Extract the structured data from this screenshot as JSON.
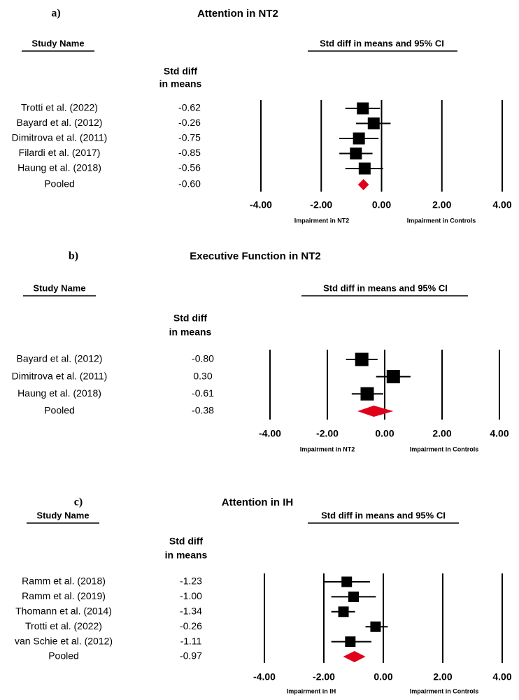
{
  "chart_data": [
    {
      "type": "forest",
      "panel_label": "a)",
      "title": "Attention in NT2",
      "study_header": "Study Name",
      "ci_header": "Std diff in means and 95% CI",
      "effect_header": [
        "Std diff",
        "in means"
      ],
      "studies": [
        {
          "name": "Trotti et al. (2022)",
          "value_text": "-0.62",
          "estimate": -0.62,
          "lower": -1.2,
          "upper": -0.05
        },
        {
          "name": "Bayard et al. (2012)",
          "value_text": "-0.26",
          "estimate": -0.26,
          "lower": -0.85,
          "upper": 0.3
        },
        {
          "name": "Dimitrova et al. (2011)",
          "value_text": "-0.75",
          "estimate": -0.75,
          "lower": -1.4,
          "upper": -0.1
        },
        {
          "name": "Filardi et al. (2017)",
          "value_text": "-0.85",
          "estimate": -0.85,
          "lower": -1.4,
          "upper": -0.3
        },
        {
          "name": "Haung et al. (2018)",
          "value_text": "-0.56",
          "estimate": -0.56,
          "lower": -1.2,
          "upper": 0.05
        }
      ],
      "pooled": {
        "name": "Pooled",
        "value_text": "-0.60",
        "estimate": -0.6,
        "lower": -0.78,
        "upper": -0.42
      },
      "x_ticks": [
        "-4.00",
        "-2.00",
        "0.00",
        "2.00",
        "4.00"
      ],
      "xlim": [
        -4,
        4
      ],
      "left_note": "Impairment in NT2",
      "right_note": "Impairment in Controls"
    },
    {
      "type": "forest",
      "panel_label": "b)",
      "title": "Executive Function in NT2",
      "study_header": "Study Name",
      "ci_header": "Std diff in means and 95% CI",
      "effect_header": [
        "Std diff",
        "in means"
      ],
      "studies": [
        {
          "name": "Bayard et al. (2012)",
          "value_text": "-0.80",
          "estimate": -0.8,
          "lower": -1.35,
          "upper": -0.25
        },
        {
          "name": "Dimitrova et al. (2011)",
          "value_text": "0.30",
          "estimate": 0.3,
          "lower": -0.3,
          "upper": 0.9
        },
        {
          "name": "Haung et al. (2018)",
          "value_text": "-0.61",
          "estimate": -0.61,
          "lower": -1.15,
          "upper": -0.05
        }
      ],
      "pooled": {
        "name": "Pooled",
        "value_text": "-0.38",
        "estimate": -0.38,
        "lower": -0.95,
        "upper": 0.3
      },
      "x_ticks": [
        "-4.00",
        "-2.00",
        "0.00",
        "2.00",
        "4.00"
      ],
      "xlim": [
        -4,
        4
      ],
      "left_note": "Impairment in NT2",
      "right_note": "Impairment in Controls"
    },
    {
      "type": "forest",
      "panel_label": "c)",
      "title": "Attention in IH",
      "study_header": "Study Name",
      "ci_header": "Std diff in means and 95% CI",
      "effect_header": [
        "Std diff",
        "in means"
      ],
      "studies": [
        {
          "name": "Ramm et al. (2018)",
          "value_text": "-1.23",
          "estimate": -1.23,
          "lower": -2.0,
          "upper": -0.45
        },
        {
          "name": "Ramm et al. (2019)",
          "value_text": "-1.00",
          "estimate": -1.0,
          "lower": -1.75,
          "upper": -0.25
        },
        {
          "name": "Thomann et al. (2014)",
          "value_text": "-1.34",
          "estimate": -1.34,
          "lower": -1.75,
          "upper": -0.95
        },
        {
          "name": "Trotti et al. (2022)",
          "value_text": "-0.26",
          "estimate": -0.26,
          "lower": -0.6,
          "upper": 0.15
        },
        {
          "name": "van Schie et al. (2012)",
          "value_text": "-1.11",
          "estimate": -1.11,
          "lower": -1.75,
          "upper": -0.4
        }
      ],
      "pooled": {
        "name": "Pooled",
        "value_text": "-0.97",
        "estimate": -0.97,
        "lower": -1.35,
        "upper": -0.6
      },
      "x_ticks": [
        "-4.00",
        "-2.00",
        "0.00",
        "2.00",
        "4.00"
      ],
      "xlim": [
        -4,
        4
      ],
      "left_note": "Impairment in IH",
      "right_note": "Impairment in Controls"
    }
  ],
  "colors": {
    "ink": "#000000",
    "pooled": "#e0001b"
  }
}
